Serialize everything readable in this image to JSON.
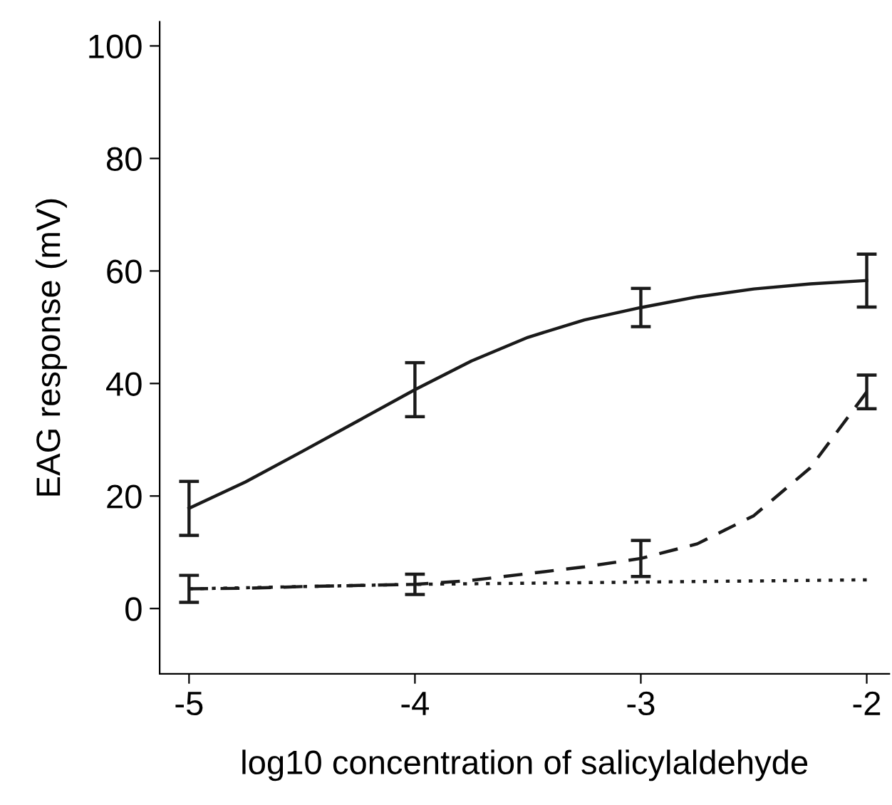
{
  "chart_data": {
    "type": "line",
    "xlabel": "log10 concentration of salicylaldehyde",
    "ylabel": "EAG response (mV)",
    "x": [
      -5,
      -4.75,
      -4.5,
      -4.25,
      -4,
      -3.75,
      -3.5,
      -3.25,
      -3,
      -2.75,
      -2.5,
      -2.25,
      -2
    ],
    "series": [
      {
        "color": "#1a1a1a",
        "line_style": "solid",
        "values": [
          17.8,
          22.5,
          27.9,
          33.4,
          38.9,
          44.0,
          48.2,
          51.3,
          53.5,
          55.4,
          56.8,
          57.7,
          58.3
        ],
        "errors": [
          4.8,
          null,
          null,
          null,
          4.8,
          null,
          null,
          null,
          3.4,
          null,
          null,
          null,
          4.7
        ]
      },
      {
        "color": "#1a1a1a",
        "line_style": "dashed",
        "values": [
          3.5,
          3.6,
          3.9,
          4.1,
          4.3,
          5.0,
          6.2,
          7.4,
          8.9,
          11.5,
          16.5,
          25.0,
          38.5
        ],
        "errors": [
          2.4,
          null,
          null,
          null,
          1.8,
          null,
          null,
          null,
          3.2,
          null,
          null,
          null,
          3.0
        ]
      },
      {
        "color": "#1a1a1a",
        "line_style": "dotted",
        "x": [
          -5,
          -4,
          -3,
          -2
        ],
        "values": [
          3.5,
          4.3,
          4.7,
          5.1
        ]
      }
    ],
    "xlim": [
      -5.13,
      -1.9
    ],
    "ylim": [
      -11.6,
      104.3
    ],
    "xticks": [
      -5,
      -4,
      -3,
      -2
    ],
    "yticks": [
      0,
      20,
      40,
      60,
      80,
      100
    ],
    "grid": false,
    "legend": false,
    "marker": "none"
  }
}
